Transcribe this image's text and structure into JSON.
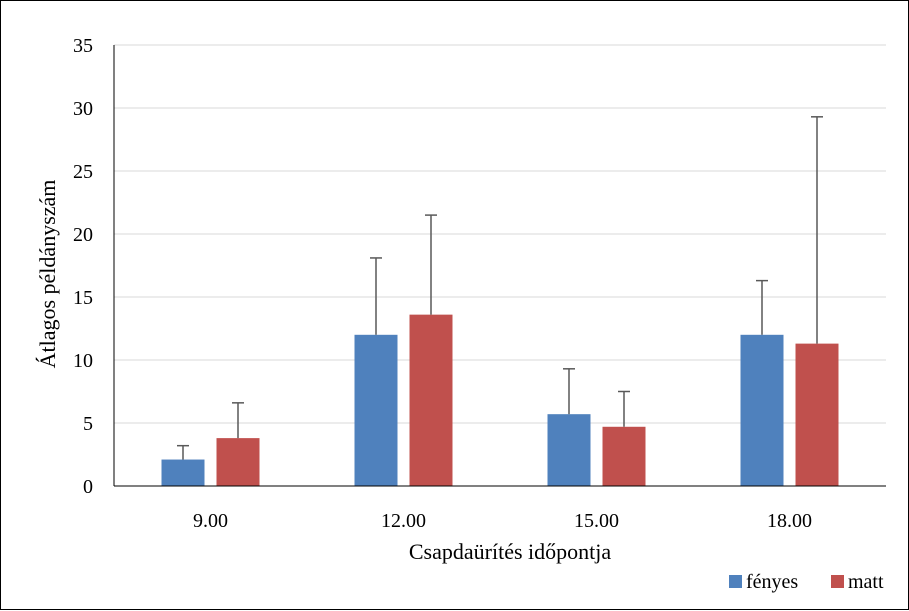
{
  "chart_data": {
    "type": "bar",
    "xlabel": "Csapdaürítés időpontja",
    "ylabel": "Átlagos példányszám",
    "categories": [
      "9.00",
      "12.00",
      "15.00",
      "18.00"
    ],
    "series": [
      {
        "name": "fényes",
        "color": "#4F81BD",
        "values": [
          2.1,
          12.0,
          5.7,
          12.0
        ],
        "error_plus": [
          1.1,
          6.1,
          3.6,
          4.3
        ]
      },
      {
        "name": "matt",
        "color": "#C0504D",
        "values": [
          3.8,
          13.6,
          4.7,
          11.3
        ],
        "error_plus": [
          2.8,
          7.9,
          2.8,
          18.0
        ]
      }
    ],
    "ylim": [
      0,
      35
    ],
    "yticks": [
      0,
      5,
      10,
      15,
      20,
      25,
      30,
      35
    ],
    "grid": true,
    "legend_position": "bottom-right"
  }
}
